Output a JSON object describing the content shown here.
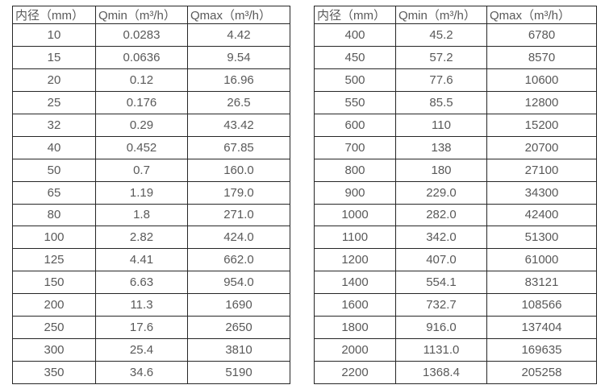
{
  "page": {
    "background_color": "#ffffff",
    "text_color": "#595959",
    "border_color": "#262626"
  },
  "left_table": {
    "headers": [
      "内径（mm）",
      "Qmin（m³/h）",
      "Qmax（m³/h）"
    ],
    "rows": [
      [
        "10",
        "0.0283",
        "4.42"
      ],
      [
        "15",
        "0.0636",
        "9.54"
      ],
      [
        "20",
        "0.12",
        "16.96"
      ],
      [
        "25",
        "0.176",
        "26.5"
      ],
      [
        "32",
        "0.29",
        "43.42"
      ],
      [
        "40",
        "0.452",
        "67.85"
      ],
      [
        "50",
        "0.7",
        "160.0"
      ],
      [
        "65",
        "1.19",
        "179.0"
      ],
      [
        "80",
        "1.8",
        "271.0"
      ],
      [
        "100",
        "2.82",
        "424.0"
      ],
      [
        "125",
        "4.41",
        "662.0"
      ],
      [
        "150",
        "6.63",
        "954.0"
      ],
      [
        "200",
        "11.3",
        "1690"
      ],
      [
        "250",
        "17.6",
        "2650"
      ],
      [
        "300",
        "25.4",
        "3810"
      ],
      [
        "350",
        "34.6",
        "5190"
      ]
    ]
  },
  "right_table": {
    "headers": [
      "内径（mm）",
      "Qmin（m³/h）",
      "Qmax（m³/h）"
    ],
    "rows": [
      [
        "400",
        "45.2",
        "6780"
      ],
      [
        "450",
        "57.2",
        "8570"
      ],
      [
        "500",
        "77.6",
        "10600"
      ],
      [
        "550",
        "85.5",
        "12800"
      ],
      [
        "600",
        "110",
        "15200"
      ],
      [
        "700",
        "138",
        "20700"
      ],
      [
        "800",
        "180",
        "27100"
      ],
      [
        "900",
        "229.0",
        "34300"
      ],
      [
        "1000",
        "282.0",
        "42400"
      ],
      [
        "1100",
        "342.0",
        "51300"
      ],
      [
        "1200",
        "407.0",
        "61000"
      ],
      [
        "1400",
        "554.1",
        "83121"
      ],
      [
        "1600",
        "732.7",
        "108566"
      ],
      [
        "1800",
        "916.0",
        "137404"
      ],
      [
        "2000",
        "1131.0",
        "169635"
      ],
      [
        "2200",
        "1368.4",
        "205258"
      ]
    ]
  }
}
